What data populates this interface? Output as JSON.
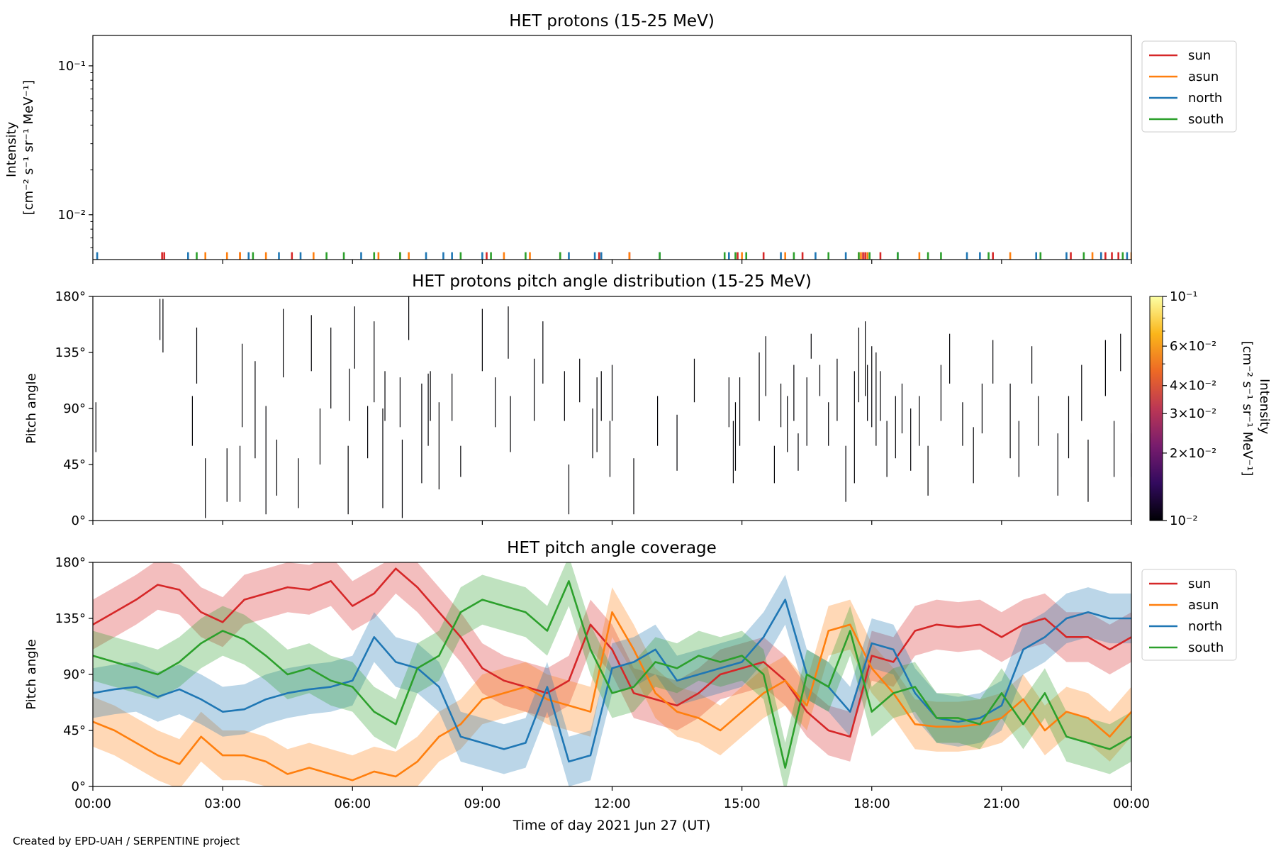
{
  "credit": "Created by EPD-UAH / SERPENTINE project",
  "colors": {
    "sun": "#d62728",
    "asun": "#ff7f0e",
    "north": "#1f77b4",
    "south": "#2ca02c",
    "cmap": [
      "#000004",
      "#320a5e",
      "#781c6d",
      "#bc3754",
      "#ed6925",
      "#fbb61a",
      "#fcffa4"
    ]
  },
  "x_axis": {
    "ticks": [
      "00:00",
      "03:00",
      "06:00",
      "09:00",
      "12:00",
      "15:00",
      "18:00",
      "21:00",
      "00:00"
    ],
    "tick_hours": [
      0,
      3,
      6,
      9,
      12,
      15,
      18,
      21,
      24
    ],
    "label": "Time of day 2021 Jun 27 (UT)",
    "range_hours": [
      0,
      24
    ]
  },
  "chart_data": [
    {
      "type": "line",
      "title": "HET protons (15-25 MeV)",
      "ylabel_line1": "Intensity",
      "ylabel_line2": "[cm⁻² s⁻¹ sr⁻¹ MeV⁻¹]",
      "yscale": "log",
      "ylim": [
        0.005,
        0.16
      ],
      "yticks": [
        {
          "value": 0.01,
          "label": "10⁻²"
        },
        {
          "value": 0.1,
          "label": "10⁻¹"
        }
      ],
      "legend": {
        "placement": "upper-right-outside",
        "entries": [
          "sun",
          "asun",
          "north",
          "south"
        ]
      },
      "series": [
        {
          "name": "sun",
          "x_hours": [
            1.6,
            1.65,
            3.4,
            4.6,
            7.1,
            9.1,
            10.8,
            11.7,
            12.4,
            14.9,
            15.5,
            16.4,
            17.8,
            17.85,
            18.2,
            20.8,
            22.6,
            23.3,
            23.4,
            23.55,
            23.7
          ],
          "value": 0.0056
        },
        {
          "name": "asun",
          "x_hours": [
            2.6,
            3.1,
            3.4,
            4.0,
            5.1,
            6.6,
            7.3,
            9.5,
            10.1,
            12.4,
            15.0,
            16.0,
            17.7,
            17.75,
            17.9,
            19.1,
            21.2,
            23.1,
            24.0
          ],
          "value": 0.0056
        },
        {
          "name": "north",
          "x_hours": [
            0.1,
            2.2,
            3.6,
            4.3,
            4.8,
            6.2,
            7.7,
            8.1,
            8.3,
            9.0,
            11.0,
            11.6,
            11.75,
            13.1,
            14.7,
            15.9,
            16.7,
            17.4,
            18.6,
            20.2,
            20.5,
            21.8,
            22.5,
            23.3,
            23.9
          ],
          "value": 0.0056
        },
        {
          "name": "south",
          "x_hours": [
            2.4,
            3.7,
            5.4,
            5.8,
            6.5,
            7.1,
            8.5,
            9.2,
            10.0,
            10.8,
            13.1,
            14.6,
            14.85,
            15.1,
            16.2,
            17.0,
            17.7,
            17.95,
            18.6,
            19.3,
            19.6,
            20.7,
            21.9,
            22.9,
            23.8
          ],
          "value": 0.0056
        }
      ]
    },
    {
      "type": "heatmap",
      "title": "HET protons pitch angle distribution (15-25 MeV)",
      "ylabel": "Pitch angle",
      "ylim": [
        0,
        180
      ],
      "yticks": [
        {
          "value": 0,
          "label": "0°"
        },
        {
          "value": 45,
          "label": "45°"
        },
        {
          "value": 90,
          "label": "90°"
        },
        {
          "value": 135,
          "label": "135°"
        },
        {
          "value": 180,
          "label": "180°"
        }
      ],
      "colorbar": {
        "scale": "log",
        "range": [
          0.01,
          0.1
        ],
        "label_line1": "Intensity",
        "label_line2": "[cm⁻² s⁻¹ sr⁻¹ MeV⁻¹]",
        "ticks": [
          {
            "value": 0.01,
            "label": "10⁻²"
          },
          {
            "value": 0.02,
            "label": "2×10⁻²"
          },
          {
            "value": 0.03,
            "label": "3×10⁻²"
          },
          {
            "value": 0.04,
            "label": "4×10⁻²"
          },
          {
            "value": 0.06,
            "label": "6×10⁻²"
          },
          {
            "value": 0.1,
            "label": "10⁻¹"
          }
        ]
      },
      "segments": [
        [
          0.07,
          55,
          95
        ],
        [
          1.55,
          145,
          178
        ],
        [
          1.62,
          135,
          178
        ],
        [
          2.3,
          60,
          100
        ],
        [
          2.4,
          110,
          155
        ],
        [
          2.6,
          2,
          50
        ],
        [
          3.1,
          15,
          58
        ],
        [
          3.4,
          15,
          60
        ],
        [
          3.45,
          75,
          142
        ],
        [
          3.75,
          50,
          128
        ],
        [
          4.0,
          5,
          92
        ],
        [
          4.25,
          20,
          65
        ],
        [
          4.4,
          115,
          170
        ],
        [
          4.75,
          10,
          50
        ],
        [
          5.05,
          120,
          165
        ],
        [
          5.25,
          45,
          90
        ],
        [
          5.5,
          90,
          155
        ],
        [
          5.9,
          5,
          60
        ],
        [
          5.93,
          80,
          122
        ],
        [
          6.05,
          122,
          172
        ],
        [
          6.35,
          50,
          92
        ],
        [
          6.5,
          95,
          160
        ],
        [
          6.7,
          10,
          90
        ],
        [
          6.75,
          80,
          120
        ],
        [
          7.1,
          75,
          115
        ],
        [
          7.15,
          2,
          65
        ],
        [
          7.3,
          145,
          180
        ],
        [
          7.6,
          30,
          110
        ],
        [
          7.75,
          60,
          118
        ],
        [
          7.8,
          80,
          120
        ],
        [
          8.0,
          25,
          95
        ],
        [
          8.3,
          80,
          118
        ],
        [
          8.5,
          35,
          60
        ],
        [
          9.0,
          120,
          170
        ],
        [
          9.3,
          75,
          115
        ],
        [
          9.6,
          130,
          172
        ],
        [
          9.65,
          55,
          100
        ],
        [
          10.2,
          80,
          130
        ],
        [
          10.4,
          110,
          160
        ],
        [
          10.9,
          80,
          120
        ],
        [
          11.0,
          5,
          45
        ],
        [
          11.25,
          95,
          130
        ],
        [
          11.55,
          50,
          90
        ],
        [
          11.65,
          55,
          115
        ],
        [
          11.75,
          80,
          120
        ],
        [
          11.95,
          35,
          80
        ],
        [
          12.0,
          80,
          125
        ],
        [
          12.5,
          5,
          50
        ],
        [
          13.05,
          60,
          100
        ],
        [
          13.5,
          40,
          85
        ],
        [
          13.9,
          95,
          130
        ],
        [
          14.7,
          75,
          115
        ],
        [
          14.8,
          30,
          80
        ],
        [
          14.85,
          40,
          95
        ],
        [
          14.95,
          60,
          115
        ],
        [
          15.4,
          80,
          135
        ],
        [
          15.55,
          100,
          148
        ],
        [
          15.75,
          30,
          60
        ],
        [
          15.9,
          75,
          110
        ],
        [
          16.05,
          55,
          100
        ],
        [
          16.2,
          80,
          125
        ],
        [
          16.3,
          40,
          70
        ],
        [
          16.5,
          60,
          115
        ],
        [
          16.6,
          130,
          150
        ],
        [
          16.8,
          100,
          125
        ],
        [
          17.0,
          60,
          95
        ],
        [
          17.2,
          80,
          130
        ],
        [
          17.4,
          15,
          60
        ],
        [
          17.6,
          30,
          120
        ],
        [
          17.7,
          95,
          155
        ],
        [
          17.85,
          100,
          160
        ],
        [
          17.9,
          80,
          125
        ],
        [
          18.0,
          75,
          140
        ],
        [
          18.1,
          60,
          135
        ],
        [
          18.2,
          80,
          120
        ],
        [
          18.35,
          35,
          80
        ],
        [
          18.55,
          50,
          100
        ],
        [
          18.7,
          70,
          110
        ],
        [
          18.9,
          40,
          90
        ],
        [
          19.1,
          60,
          100
        ],
        [
          19.3,
          20,
          60
        ],
        [
          19.6,
          80,
          125
        ],
        [
          19.8,
          110,
          150
        ],
        [
          20.1,
          60,
          95
        ],
        [
          20.35,
          30,
          75
        ],
        [
          20.55,
          70,
          110
        ],
        [
          20.8,
          110,
          145
        ],
        [
          21.2,
          50,
          110
        ],
        [
          21.4,
          35,
          80
        ],
        [
          21.7,
          110,
          140
        ],
        [
          21.85,
          60,
          100
        ],
        [
          22.3,
          20,
          70
        ],
        [
          22.55,
          50,
          100
        ],
        [
          22.85,
          80,
          125
        ],
        [
          23.0,
          15,
          65
        ],
        [
          23.4,
          100,
          145
        ],
        [
          23.6,
          35,
          80
        ],
        [
          23.75,
          120,
          150
        ],
        [
          24.0,
          35,
          70
        ]
      ]
    },
    {
      "type": "line",
      "title": "HET pitch angle coverage",
      "ylabel": "Pitch angle",
      "ylim": [
        0,
        180
      ],
      "yticks": [
        {
          "value": 0,
          "label": "0°"
        },
        {
          "value": 45,
          "label": "45°"
        },
        {
          "value": 90,
          "label": "90°"
        },
        {
          "value": 135,
          "label": "135°"
        },
        {
          "value": 180,
          "label": "180°"
        }
      ],
      "legend": {
        "placement": "upper-right-outside",
        "entries": [
          "sun",
          "asun",
          "north",
          "south"
        ]
      },
      "x_hours": [
        0,
        0.5,
        1,
        1.5,
        2,
        2.5,
        3,
        3.5,
        4,
        4.5,
        5,
        5.5,
        6,
        6.5,
        7,
        7.5,
        8,
        8.5,
        9,
        9.5,
        10,
        10.5,
        11,
        11.5,
        12,
        12.5,
        13,
        13.5,
        14,
        14.5,
        15,
        15.5,
        16,
        16.5,
        17,
        17.5,
        18,
        18.5,
        19,
        19.5,
        20,
        20.5,
        21,
        21.5,
        22,
        22.5,
        23,
        23.5,
        24
      ],
      "series": [
        {
          "name": "sun",
          "values": [
            130,
            140,
            150,
            162,
            158,
            140,
            132,
            150,
            155,
            160,
            158,
            165,
            145,
            155,
            175,
            160,
            140,
            120,
            95,
            85,
            80,
            75,
            85,
            130,
            110,
            75,
            70,
            65,
            75,
            90,
            95,
            100,
            85,
            60,
            45,
            40,
            105,
            100,
            125,
            130,
            128,
            130,
            120,
            130,
            135,
            120,
            120,
            110,
            120
          ],
          "spread": 20
        },
        {
          "name": "asun",
          "values": [
            52,
            45,
            35,
            25,
            18,
            40,
            25,
            25,
            20,
            10,
            15,
            10,
            5,
            12,
            8,
            20,
            40,
            50,
            70,
            75,
            80,
            70,
            65,
            60,
            140,
            110,
            75,
            60,
            55,
            45,
            60,
            75,
            85,
            65,
            125,
            130,
            95,
            75,
            50,
            48,
            48,
            50,
            55,
            70,
            45,
            60,
            55,
            40,
            60
          ],
          "spread": 20
        },
        {
          "name": "north",
          "values": [
            75,
            78,
            80,
            72,
            78,
            70,
            60,
            62,
            70,
            75,
            78,
            80,
            85,
            120,
            100,
            95,
            80,
            40,
            35,
            30,
            35,
            80,
            20,
            25,
            95,
            100,
            110,
            85,
            90,
            95,
            100,
            120,
            150,
            90,
            80,
            60,
            115,
            110,
            75,
            55,
            52,
            55,
            65,
            110,
            120,
            135,
            140,
            135,
            135
          ],
          "spread": 20
        },
        {
          "name": "south",
          "values": [
            105,
            100,
            95,
            90,
            100,
            115,
            125,
            118,
            105,
            90,
            95,
            85,
            80,
            60,
            50,
            95,
            105,
            140,
            150,
            145,
            140,
            125,
            165,
            110,
            75,
            80,
            100,
            95,
            105,
            100,
            105,
            90,
            15,
            90,
            80,
            125,
            60,
            75,
            80,
            55,
            55,
            50,
            75,
            50,
            75,
            40,
            35,
            30,
            40
          ],
          "spread": 20
        }
      ]
    }
  ]
}
